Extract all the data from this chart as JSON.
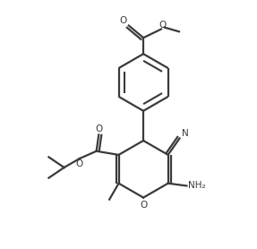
{
  "background_color": "#ffffff",
  "line_color": "#3a3a3a",
  "line_width": 1.6,
  "figsize": [
    2.87,
    2.78
  ],
  "dpi": 100,
  "xlim": [
    0,
    10
  ],
  "ylim": [
    0,
    10
  ]
}
